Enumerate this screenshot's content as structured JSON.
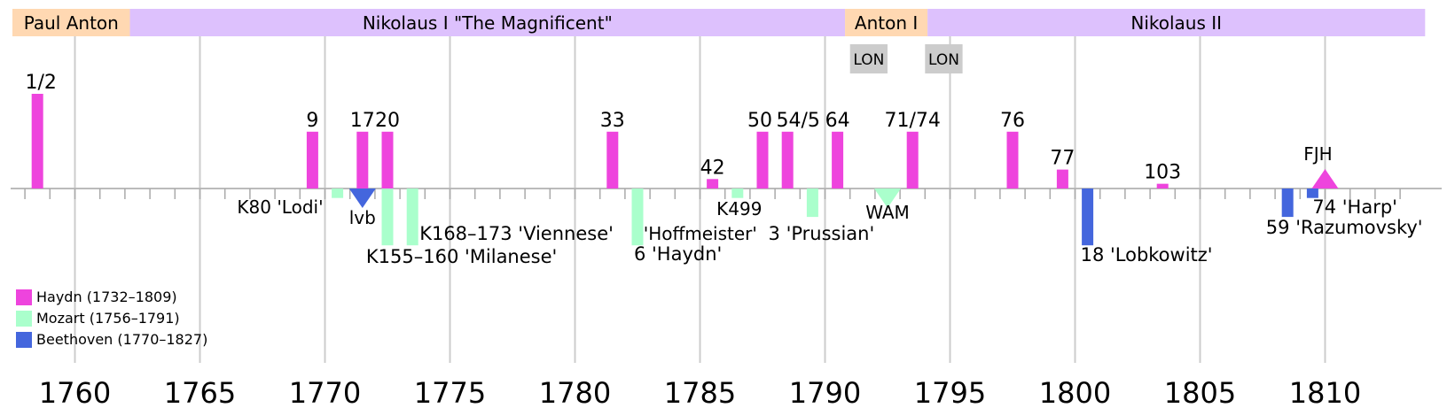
{
  "chart_data": {
    "type": "timeline",
    "title": "",
    "xlim": [
      1757.5,
      1814
    ],
    "ticks": [
      1760,
      1765,
      1770,
      1775,
      1780,
      1785,
      1790,
      1795,
      1800,
      1805,
      1810
    ],
    "tick_labels": [
      "1760",
      "1765",
      "1770",
      "1775",
      "1780",
      "1785",
      "1790",
      "1795",
      "1800",
      "1805",
      "1810"
    ],
    "patrons": [
      {
        "name": "Paul Anton",
        "start": 1757.5,
        "end": 1762.2,
        "color": "#ffd8b2"
      },
      {
        "name": "Nikolaus I \"The Magnificent\"",
        "start": 1762.2,
        "end": 1790.8,
        "color": "#ddc1fd"
      },
      {
        "name": "Anton I",
        "start": 1790.8,
        "end": 1794.1,
        "color": "#ffd8b2"
      },
      {
        "name": "Nikolaus II",
        "start": 1794.1,
        "end": 1814,
        "color": "#ddc1fd"
      }
    ],
    "london_visits": [
      {
        "label": "LON",
        "start": 1791,
        "end": 1792.5
      },
      {
        "label": "LON",
        "start": 1794,
        "end": 1795.5
      }
    ],
    "series": [
      {
        "name": "Haydn (1732–1809)",
        "color": "#ee44dd"
      },
      {
        "name": "Mozart (1756–1791)",
        "color": "#aaffcc"
      },
      {
        "name": "Beethoven (1770–1827)",
        "color": "#4466dd"
      }
    ],
    "haydn": [
      {
        "year": 1758,
        "height": 10,
        "label": "1/2"
      },
      {
        "year": 1769,
        "height": 6,
        "label": "9"
      },
      {
        "year": 1771,
        "height": 6,
        "label": "17"
      },
      {
        "year": 1772,
        "height": 6,
        "label": "20"
      },
      {
        "year": 1781,
        "height": 6,
        "label": "33"
      },
      {
        "year": 1785,
        "height": 1,
        "label": "42"
      },
      {
        "year": 1787,
        "height": 6,
        "label": "50"
      },
      {
        "year": 1788,
        "height": 6,
        "label": "54/5"
      },
      {
        "year": 1790,
        "height": 6,
        "label": "64"
      },
      {
        "year": 1793,
        "height": 6,
        "label": "71/74"
      },
      {
        "year": 1797,
        "height": 6,
        "label": "76"
      },
      {
        "year": 1799,
        "height": 2,
        "label": "77"
      },
      {
        "year": 1803,
        "height": 0.5,
        "label": "103"
      }
    ],
    "mozart": [
      {
        "year": 1770,
        "height": 1,
        "label": "K80 'Lodi'"
      },
      {
        "year": 1772,
        "height": 6,
        "label": "K155–160 'Milanese'"
      },
      {
        "year": 1773,
        "height": 6,
        "label": "K168–173 'Viennese'"
      },
      {
        "year": 1782,
        "height": 6,
        "label": "6 'Haydn'"
      },
      {
        "year": 1786,
        "height": 1,
        "label": "K499 'Hoffmeister'"
      },
      {
        "year": 1789,
        "height": 3,
        "label": "3 'Prussian'"
      }
    ],
    "beethoven": [
      {
        "year": 1800,
        "height": 6,
        "label": "18 'Lobkowitz'"
      },
      {
        "year": 1808,
        "height": 3,
        "label": "59 'Razumovsky'"
      },
      {
        "year": 1809,
        "height": 1,
        "label": "74 'Harp'"
      }
    ],
    "markers": [
      {
        "year": 1771,
        "label": "lvb",
        "color": "#4466dd",
        "direction": "down"
      },
      {
        "year": 1792,
        "label": "WAM",
        "color": "#aaffcc",
        "direction": "down"
      },
      {
        "year": 1809.5,
        "label": "FJH",
        "color": "#ee44dd",
        "direction": "up"
      }
    ],
    "legend": {
      "placement": "bottom-left"
    }
  }
}
